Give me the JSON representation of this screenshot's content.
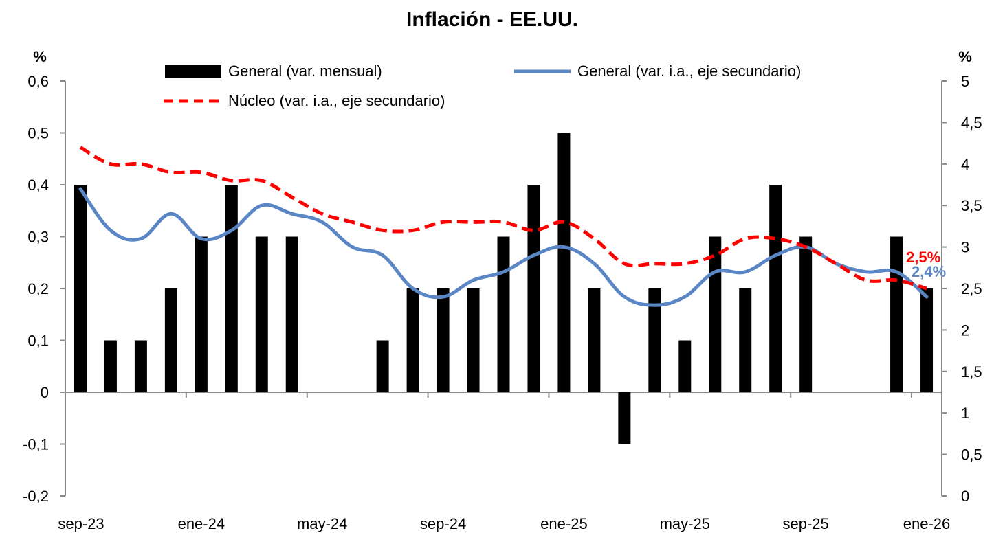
{
  "chart_data": {
    "type": "bar",
    "title": "Inflación - EE.UU.",
    "left_axis": {
      "unit": "%",
      "range": [
        -0.2,
        0.6
      ],
      "ticks": [
        -0.2,
        -0.1,
        0,
        0.1,
        0.2,
        0.3,
        0.4,
        0.5,
        0.6
      ],
      "tick_labels": [
        "-0,2",
        "-0,1",
        "0",
        "0,1",
        "0,2",
        "0,3",
        "0,4",
        "0,5",
        "0,6"
      ]
    },
    "right_axis": {
      "unit": "%",
      "range": [
        0,
        5
      ],
      "ticks": [
        0,
        0.5,
        1,
        1.5,
        2,
        2.5,
        3,
        3.5,
        4,
        4.5,
        5
      ],
      "tick_labels": [
        "0",
        "0,5",
        "1",
        "1,5",
        "2",
        "2,5",
        "3",
        "3,5",
        "4",
        "4,5",
        "5"
      ]
    },
    "months": [
      "sep-23",
      "oct-23",
      "nov-23",
      "dic-23",
      "ene-24",
      "feb-24",
      "mar-24",
      "abr-24",
      "may-24",
      "jun-24",
      "jul-24",
      "ago-24",
      "sep-24",
      "oct-24",
      "nov-24",
      "dic-24",
      "ene-25",
      "feb-25",
      "mar-25",
      "abr-25",
      "may-25",
      "jun-25",
      "jul-25",
      "ago-25",
      "sep-25",
      "oct-25",
      "nov-25",
      "dic-25",
      "ene-26"
    ],
    "x_tick_labels": [
      "sep-23",
      "ene-24",
      "may-24",
      "sep-24",
      "ene-25",
      "may-25",
      "sep-25",
      "ene-26"
    ],
    "x_tick_indices": [
      0,
      4,
      8,
      12,
      16,
      20,
      24,
      28
    ],
    "series": [
      {
        "name": "General (var. mensual)",
        "type": "bar",
        "axis": "left",
        "color": "#000000",
        "values": [
          0.4,
          0.1,
          0.1,
          0.2,
          0.3,
          0.4,
          0.3,
          0.3,
          null,
          null,
          0.1,
          0.2,
          0.2,
          0.2,
          0.3,
          0.4,
          0.5,
          0.2,
          -0.1,
          0.2,
          0.1,
          0.3,
          0.2,
          0.4,
          0.3,
          null,
          null,
          0.3,
          0.2
        ]
      },
      {
        "name": "General (var. i.a., eje secundario)",
        "type": "line",
        "axis": "right",
        "color": "#5b86c5",
        "values": [
          3.7,
          3.2,
          3.1,
          3.4,
          3.1,
          3.2,
          3.5,
          3.4,
          3.3,
          3.0,
          2.9,
          2.5,
          2.4,
          2.6,
          2.7,
          2.9,
          3.0,
          2.8,
          2.4,
          2.3,
          2.4,
          2.7,
          2.7,
          2.9,
          3.0,
          2.8,
          2.7,
          2.7,
          2.4
        ]
      },
      {
        "name": "Núcleo (var. i.a., eje secundario)",
        "type": "line",
        "axis": "right",
        "dashed": true,
        "color": "#ff0000",
        "values": [
          4.2,
          4.0,
          4.0,
          3.9,
          3.9,
          3.8,
          3.8,
          3.6,
          3.4,
          3.3,
          3.2,
          3.2,
          3.3,
          3.3,
          3.3,
          3.2,
          3.3,
          3.1,
          2.8,
          2.8,
          2.8,
          2.9,
          3.1,
          3.1,
          3.0,
          2.8,
          2.6,
          2.6,
          2.5
        ]
      }
    ],
    "annotations": [
      {
        "text": "2,5%",
        "series": "Núcleo (var. i.a., eje secundario)",
        "color": "#ff0000"
      },
      {
        "text": "2,4%",
        "series": "General (var. i.a., eje secundario)",
        "color": "#5b86c5"
      }
    ]
  }
}
